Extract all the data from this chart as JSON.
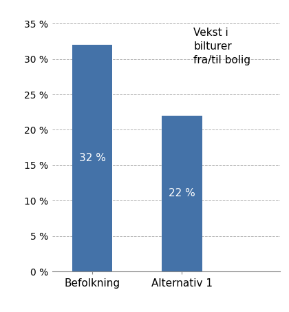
{
  "categories": [
    "Befolkning",
    "Alternativ 1"
  ],
  "values": [
    0.32,
    0.22
  ],
  "bar_labels": [
    "32 %",
    "22 %"
  ],
  "bar_color": "#4472a8",
  "annotation_text": "Vekst i\nbilturer\nfra/til bolig",
  "ylim": [
    0,
    0.37
  ],
  "yticks": [
    0.0,
    0.05,
    0.1,
    0.15,
    0.2,
    0.25,
    0.3,
    0.35
  ],
  "ytick_labels": [
    "0 %",
    "5 %",
    "10 %",
    "15 %",
    "20 %",
    "25 %",
    "30 %",
    "35 %"
  ],
  "background_color": "#ffffff",
  "bar_label_fontsize": 11,
  "annotation_fontsize": 11,
  "tick_fontsize": 10,
  "cat_fontsize": 11,
  "bar_width": 0.45,
  "xlim": [
    -0.45,
    2.1
  ]
}
